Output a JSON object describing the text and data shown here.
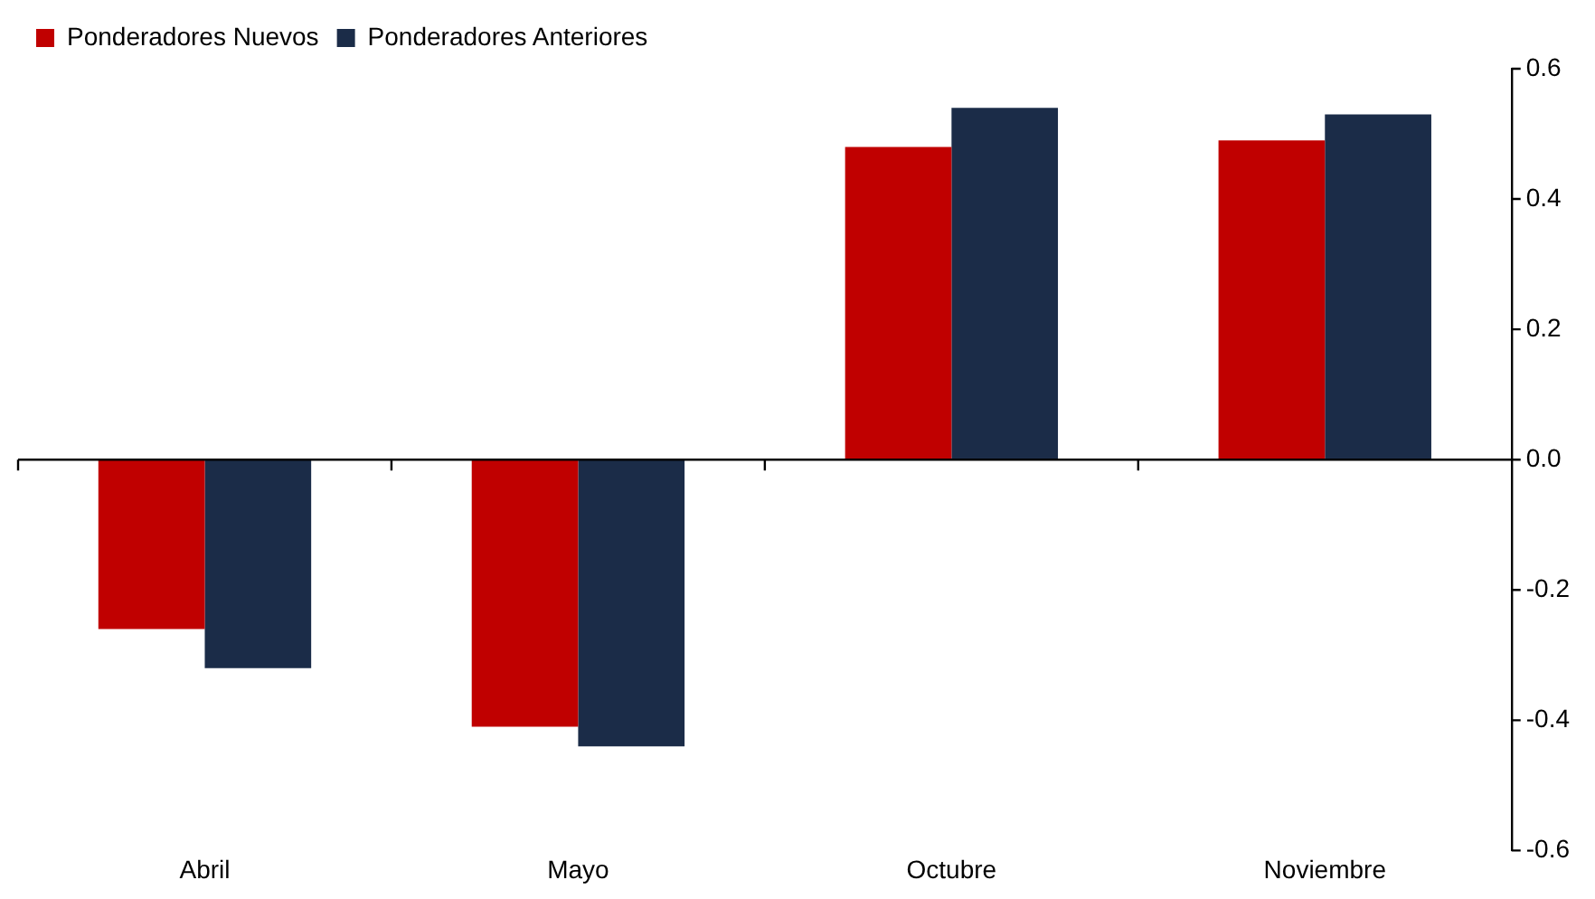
{
  "chart_data": {
    "type": "bar",
    "categories": [
      "Abril",
      "Mayo",
      "Octubre",
      "Noviembre"
    ],
    "series": [
      {
        "name": "Ponderadores Nuevos",
        "color": "#c00000",
        "values": [
          -0.26,
          -0.41,
          0.48,
          0.49
        ]
      },
      {
        "name": "Ponderadores Anteriores",
        "color": "#1b2c48",
        "values": [
          -0.32,
          -0.44,
          0.54,
          0.53
        ]
      }
    ],
    "ylim": [
      -0.6,
      0.6
    ],
    "yticks": [
      {
        "value": -0.6,
        "label": "-0.6"
      },
      {
        "value": -0.4,
        "label": "-0.4"
      },
      {
        "value": -0.2,
        "label": "-0.2"
      },
      {
        "value": 0,
        "label": "0.0"
      },
      {
        "value": 0.2,
        "label": "0.2"
      },
      {
        "value": 0.4,
        "label": "0.4"
      },
      {
        "value": 0.6,
        "label": "0.6"
      }
    ],
    "ref_lines": [
      {
        "axis": "y",
        "value": 0,
        "color": "#000000"
      }
    ],
    "grid": false,
    "legend": "top left"
  }
}
